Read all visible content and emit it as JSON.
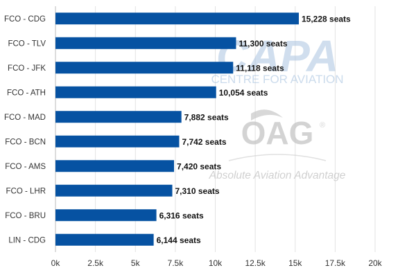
{
  "chart_data": {
    "type": "bar",
    "orientation": "horizontal",
    "categories": [
      "FCO - CDG",
      "FCO - TLV",
      "FCO - JFK",
      "FCO - ATH",
      "FCO - MAD",
      "FCO - BCN",
      "FCO - AMS",
      "FCO - LHR",
      "FCO - BRU",
      "LIN - CDG"
    ],
    "values": [
      15228,
      11300,
      11118,
      10054,
      7882,
      7742,
      7420,
      7310,
      6316,
      6144
    ],
    "data_labels": [
      "15,228 seats",
      "11,300 seats",
      "11,118 seats",
      "10,054 seats",
      "7,882 seats",
      "7,742 seats",
      "7,420 seats",
      "7,310 seats",
      "6,316 seats",
      "6,144 seats"
    ],
    "xlim": [
      0,
      20000
    ],
    "x_ticks": [
      0,
      2500,
      5000,
      7500,
      10000,
      12500,
      15000,
      17500,
      20000
    ],
    "x_tick_labels": [
      "0k",
      "2.5k",
      "5k",
      "7.5k",
      "10k",
      "12.5k",
      "15k",
      "17.5k",
      "20k"
    ],
    "grid": "vertical",
    "bar_color": "#0652a2",
    "title": "",
    "xlabel": "",
    "ylabel": ""
  },
  "watermarks": {
    "capa_logo": "CAPA",
    "capa_tagline": "CENTRE FOR AVIATION",
    "oag_logo": "OAG",
    "oag_registered": "®",
    "oag_tagline": "Absolute Aviation Advantage"
  }
}
